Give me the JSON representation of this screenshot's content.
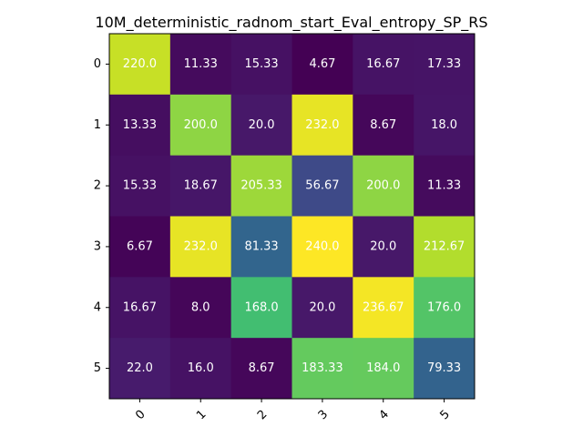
{
  "chart_data": {
    "type": "heatmap",
    "title": "10M_deterministic_radnom_start_Eval_entropy_SP_RS",
    "colormap": "viridis",
    "x_tick_labels": [
      "0",
      "1",
      "2",
      "3",
      "4",
      "5"
    ],
    "y_tick_labels": [
      "0",
      "1",
      "2",
      "3",
      "4",
      "5"
    ],
    "value_range": [
      4.67,
      240.0
    ],
    "values": [
      [
        220.0,
        11.33,
        15.33,
        4.67,
        16.67,
        17.33
      ],
      [
        13.33,
        200.0,
        20.0,
        232.0,
        8.67,
        18.0
      ],
      [
        15.33,
        18.67,
        205.33,
        56.67,
        200.0,
        11.33
      ],
      [
        6.67,
        232.0,
        81.33,
        240.0,
        20.0,
        212.67
      ],
      [
        16.67,
        8.0,
        168.0,
        20.0,
        236.67,
        176.0
      ],
      [
        22.0,
        16.0,
        8.67,
        183.33,
        184.0,
        79.33
      ]
    ],
    "cell_labels": [
      [
        "220.0",
        "11.33",
        "15.33",
        "4.67",
        "16.67",
        "17.33"
      ],
      [
        "13.33",
        "200.0",
        "20.0",
        "232.0",
        "8.67",
        "18.0"
      ],
      [
        "15.33",
        "18.67",
        "205.33",
        "56.67",
        "200.0",
        "11.33"
      ],
      [
        "6.67",
        "232.0",
        "81.33",
        "240.0",
        "20.0",
        "212.67"
      ],
      [
        "16.67",
        "8.0",
        "168.0",
        "20.0",
        "236.67",
        "176.0"
      ],
      [
        "22.0",
        "16.0",
        "8.67",
        "183.33",
        "184.0",
        "79.33"
      ]
    ],
    "xlabel": "",
    "ylabel": "",
    "grid": false
  }
}
